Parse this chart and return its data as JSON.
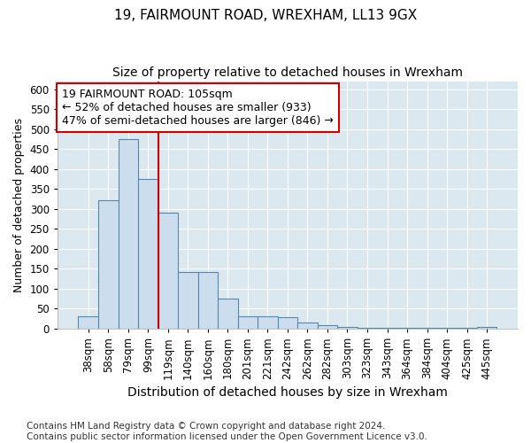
{
  "title_line1": "19, FAIRMOUNT ROAD, WREXHAM, LL13 9GX",
  "title_line2": "Size of property relative to detached houses in Wrexham",
  "xlabel": "Distribution of detached houses by size in Wrexham",
  "ylabel": "Number of detached properties",
  "footnote": "Contains HM Land Registry data © Crown copyright and database right 2024.\nContains public sector information licensed under the Open Government Licence v3.0.",
  "bar_labels": [
    "38sqm",
    "58sqm",
    "79sqm",
    "99sqm",
    "119sqm",
    "140sqm",
    "160sqm",
    "180sqm",
    "201sqm",
    "221sqm",
    "242sqm",
    "262sqm",
    "282sqm",
    "303sqm",
    "323sqm",
    "343sqm",
    "364sqm",
    "384sqm",
    "404sqm",
    "425sqm",
    "445sqm"
  ],
  "bar_values": [
    30,
    322,
    475,
    375,
    290,
    143,
    143,
    75,
    32,
    30,
    28,
    15,
    8,
    5,
    3,
    2,
    2,
    2,
    2,
    2,
    5
  ],
  "bar_color": "#ccdded",
  "bar_edgecolor": "#5588aa",
  "ylim": [
    0,
    620
  ],
  "yticks": [
    0,
    50,
    100,
    150,
    200,
    250,
    300,
    350,
    400,
    450,
    500,
    550,
    600
  ],
  "annotation_line1": "19 FAIRMOUNT ROAD: 105sqm",
  "annotation_line2": "← 52% of detached houses are smaller (933)",
  "annotation_line3": "47% of semi-detached houses are larger (846) →",
  "annotation_box_facecolor": "#ffffff",
  "annotation_box_edgecolor": "#cc0000",
  "vline_color": "#cc0000",
  "plot_bg_color": "#dce8f0",
  "fig_bg_color": "#ffffff",
  "grid_color": "#ffffff",
  "title1_fontsize": 11,
  "title2_fontsize": 10,
  "xlabel_fontsize": 10,
  "ylabel_fontsize": 9,
  "tick_fontsize": 8.5,
  "annot_fontsize": 9,
  "footnote_fontsize": 7.5,
  "vline_x_index": 3.5
}
